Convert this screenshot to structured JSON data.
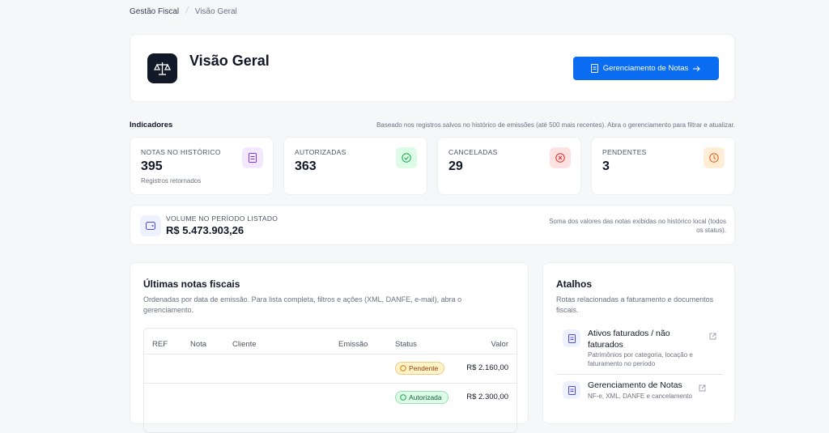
{
  "breadcrumb": {
    "items": [
      "Gestão Fiscal",
      "Visão Geral"
    ]
  },
  "header": {
    "title": "Visão Geral",
    "button": "Gerenciamento de Notas"
  },
  "indicators": {
    "label": "Indicadores",
    "note": "Baseado nos registros salvos no histórico de emissões (até 500 mais recentes). Abra o gerenciamento para filtrar e atualizar.",
    "cards": [
      {
        "label": "NOTAS NO HISTÓRICO",
        "value": 395,
        "sub": "Registros retornados"
      },
      {
        "label": "AUTORIZADAS",
        "value": 363
      },
      {
        "label": "CANCELADAS",
        "value": 29
      },
      {
        "label": "PENDENTES",
        "value": 3
      }
    ]
  },
  "volume": {
    "label": "VOLUME NO PERÍODO LISTADO",
    "value": "R$ 5.473.903,26",
    "note": "Soma dos valores das notas exibidas no histórico local (todos os status)."
  },
  "recent": {
    "title": "Últimas notas fiscais",
    "description": "Ordenadas por data de emissão. Para lista completa, filtros e ações (XML, DANFE, e-mail), abra o gerenciamento.",
    "table": {
      "headers": [
        "REF",
        "Nota",
        "Cliente",
        "Emissão",
        "Status",
        "Valor"
      ],
      "rows": [
        {
          "status": "Pendente",
          "value": "R$ 2.160,00"
        },
        {
          "status": "Autorizada",
          "value": "R$ 2.300,00"
        }
      ]
    }
  },
  "shortcuts": {
    "title": "Atalhos",
    "description": "Rotas relacionadas a faturamento e documentos fiscais.",
    "items": [
      {
        "title": "Ativos faturados / não faturados",
        "description": "Patrimônios por categoria, locação e faturamento no período"
      },
      {
        "title": "Gerenciamento de Notas",
        "description": "NF-e, XML, DANFE e cancelamento"
      }
    ]
  }
}
